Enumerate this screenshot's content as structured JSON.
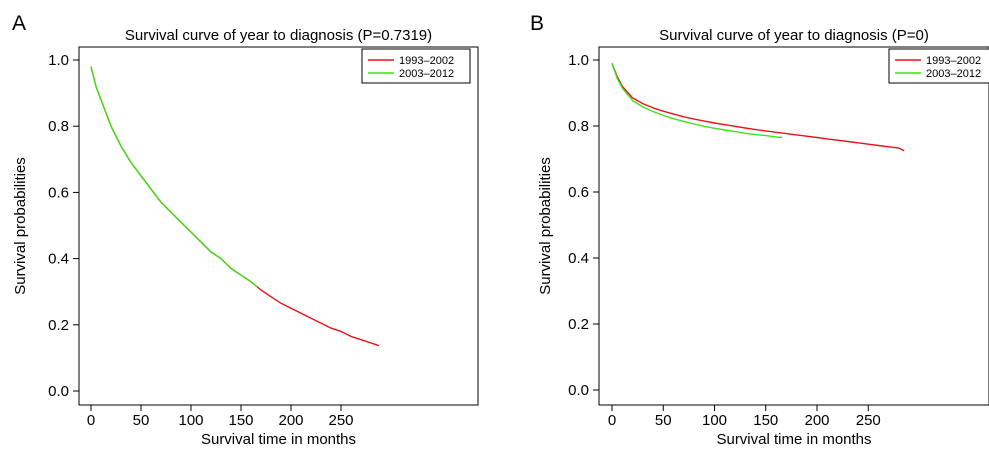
{
  "panels": [
    {
      "letter": "A"
    },
    {
      "letter": "B"
    }
  ],
  "chart_data": [
    {
      "type": "line",
      "title": "Survival curve of year to diagnosis (P=0.7319)",
      "xlabel": "Survival time in months",
      "ylabel": "Survival probabilities",
      "xlim": [
        0,
        290
      ],
      "ylim": [
        0,
        1
      ],
      "xticks": [
        "0",
        "50",
        "100",
        "150",
        "200",
        "250"
      ],
      "yticks": [
        "0.0",
        "0.2",
        "0.4",
        "0.6",
        "0.8",
        "1.0"
      ],
      "legend_position": "top-right",
      "grid": false,
      "series": [
        {
          "name": "1993–2002",
          "color": "#e8141c",
          "x": [
            0,
            5,
            10,
            20,
            30,
            40,
            50,
            60,
            70,
            80,
            90,
            100,
            110,
            120,
            130,
            140,
            150,
            160,
            170,
            180,
            190,
            200,
            210,
            220,
            230,
            240,
            250,
            260,
            270,
            280,
            288
          ],
          "y": [
            0.98,
            0.92,
            0.88,
            0.8,
            0.74,
            0.69,
            0.65,
            0.61,
            0.57,
            0.54,
            0.51,
            0.48,
            0.45,
            0.42,
            0.4,
            0.37,
            0.35,
            0.33,
            0.305,
            0.285,
            0.265,
            0.25,
            0.235,
            0.22,
            0.205,
            0.19,
            0.18,
            0.165,
            0.155,
            0.145,
            0.137
          ]
        },
        {
          "name": "2003–2012",
          "color": "#40e01c",
          "x": [
            0,
            5,
            10,
            20,
            30,
            40,
            50,
            60,
            70,
            80,
            90,
            100,
            110,
            120,
            130,
            140,
            150,
            160,
            166
          ],
          "y": [
            0.98,
            0.92,
            0.88,
            0.8,
            0.74,
            0.69,
            0.65,
            0.61,
            0.57,
            0.54,
            0.51,
            0.48,
            0.45,
            0.42,
            0.4,
            0.37,
            0.35,
            0.33,
            0.315
          ]
        }
      ]
    },
    {
      "type": "line",
      "title": "Survival curve of year to diagnosis (P=0)",
      "xlabel": "Survival time in months",
      "ylabel": "Survival probabilities",
      "xlim": [
        0,
        290
      ],
      "ylim": [
        0,
        1
      ],
      "xticks": [
        "0",
        "50",
        "100",
        "150",
        "200",
        "250"
      ],
      "yticks": [
        "0.0",
        "0.2",
        "0.4",
        "0.6",
        "0.8",
        "1.0"
      ],
      "legend_position": "top-right",
      "grid": false,
      "series": [
        {
          "name": "1993–2002",
          "color": "#e8141c",
          "x": [
            0,
            5,
            10,
            20,
            30,
            40,
            50,
            60,
            70,
            80,
            90,
            100,
            110,
            120,
            130,
            140,
            150,
            160,
            170,
            180,
            190,
            200,
            210,
            220,
            230,
            240,
            250,
            260,
            270,
            280,
            285
          ],
          "y": [
            0.99,
            0.95,
            0.92,
            0.885,
            0.868,
            0.855,
            0.845,
            0.836,
            0.828,
            0.821,
            0.815,
            0.809,
            0.804,
            0.799,
            0.794,
            0.789,
            0.785,
            0.781,
            0.777,
            0.773,
            0.769,
            0.765,
            0.761,
            0.757,
            0.753,
            0.749,
            0.745,
            0.741,
            0.737,
            0.733,
            0.725
          ]
        },
        {
          "name": "2003–2012",
          "color": "#40e01c",
          "x": [
            0,
            5,
            10,
            20,
            30,
            40,
            50,
            60,
            70,
            80,
            90,
            100,
            110,
            120,
            130,
            140,
            150,
            160,
            166
          ],
          "y": [
            0.99,
            0.945,
            0.915,
            0.877,
            0.858,
            0.844,
            0.832,
            0.822,
            0.814,
            0.806,
            0.799,
            0.793,
            0.788,
            0.783,
            0.778,
            0.774,
            0.771,
            0.767,
            0.765
          ]
        }
      ]
    }
  ]
}
